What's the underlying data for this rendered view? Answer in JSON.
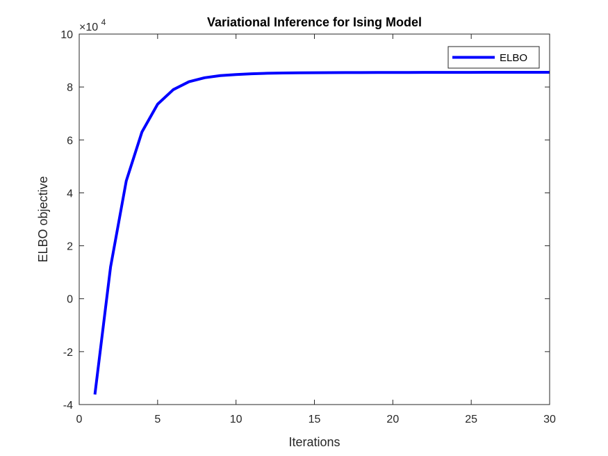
{
  "chart_data": {
    "type": "line",
    "title": "Variational Inference for Ising Model",
    "xlabel": "Iterations",
    "ylabel": "ELBO objective",
    "y_exponent_label": "×10",
    "y_exponent_power": "4",
    "xlim": [
      0,
      30
    ],
    "ylim": [
      -4,
      10
    ],
    "xticks": [
      0,
      5,
      10,
      15,
      20,
      25,
      30
    ],
    "xtick_labels": [
      "0",
      "5",
      "10",
      "15",
      "20",
      "25",
      "30"
    ],
    "yticks": [
      -4,
      -2,
      0,
      2,
      4,
      6,
      8,
      10
    ],
    "ytick_labels": [
      "-4",
      "-2",
      "0",
      "2",
      "4",
      "6",
      "8",
      "10"
    ],
    "grid": false,
    "legend": {
      "position": "top-right",
      "entries": [
        "ELBO"
      ]
    },
    "series": [
      {
        "name": "ELBO",
        "color": "#0000ff",
        "x": [
          1,
          2,
          3,
          4,
          5,
          6,
          7,
          8,
          9,
          10,
          11,
          12,
          13,
          14,
          15,
          16,
          17,
          18,
          19,
          20,
          21,
          22,
          23,
          24,
          25,
          26,
          27,
          28,
          29,
          30,
          31
        ],
        "y": [
          -3.62,
          1.2,
          4.45,
          6.3,
          7.35,
          7.9,
          8.2,
          8.35,
          8.43,
          8.47,
          8.5,
          8.52,
          8.53,
          8.535,
          8.54,
          8.543,
          8.545,
          8.547,
          8.548,
          8.549,
          8.55,
          8.551,
          8.552,
          8.553,
          8.553,
          8.554,
          8.554,
          8.555,
          8.555,
          8.555,
          8.555
        ]
      }
    ]
  }
}
